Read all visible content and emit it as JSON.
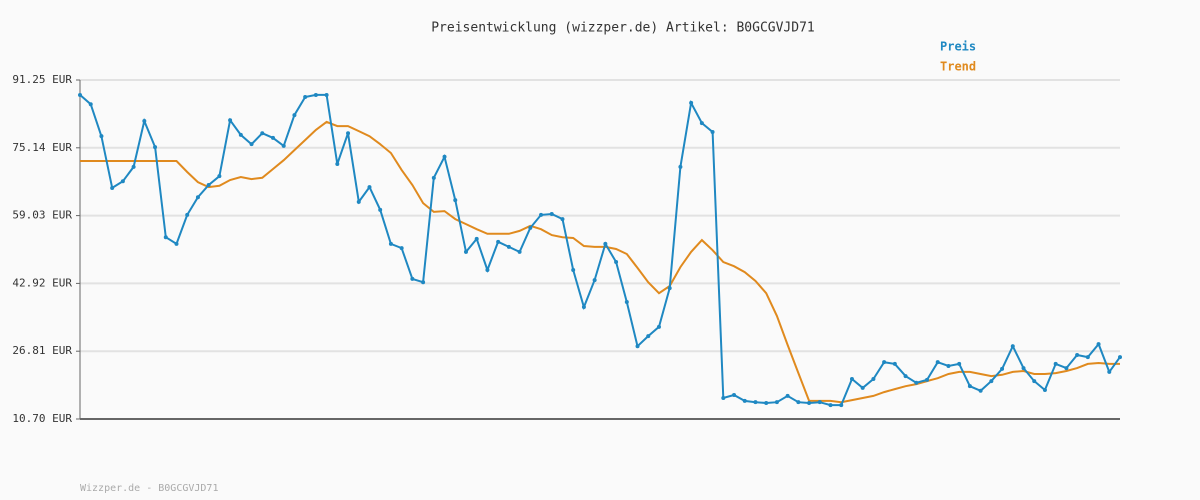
{
  "chart_data": {
    "type": "line",
    "title": "Preisentwicklung (wizzper.de) Artikel: B0GCGVJD71",
    "footer": "Wizzper.de - B0GCGVJD71",
    "categories": [
      null,
      null,
      null,
      null,
      null,
      null,
      null,
      null,
      null,
      null,
      null,
      null,
      null,
      null,
      null,
      null,
      null,
      null,
      null,
      null,
      null,
      null,
      null,
      null,
      null,
      null,
      null,
      null,
      null,
      null,
      null,
      null,
      null,
      null,
      null,
      null,
      null,
      null,
      null,
      null,
      null,
      null,
      null,
      null,
      null,
      null,
      null,
      null,
      null,
      null,
      null,
      null,
      null,
      null,
      null,
      null,
      null,
      null,
      null,
      null,
      null,
      null,
      null,
      null,
      null,
      null,
      null,
      null,
      null,
      null,
      null,
      null,
      null,
      null,
      null,
      null,
      null,
      null,
      null,
      null,
      null,
      null,
      null,
      null,
      null,
      null,
      null,
      null,
      null,
      null,
      null,
      null,
      null,
      null,
      null,
      null,
      null,
      null
    ],
    "series": [
      {
        "name": "Preis",
        "color": "#1f88c2",
        "markers": true,
        "values": [
          87.7,
          85.5,
          77.9,
          65.6,
          67.2,
          70.6,
          81.5,
          75.3,
          53.9,
          52.3,
          59.2,
          63.4,
          66.3,
          68.4,
          81.7,
          78.2,
          76.0,
          78.6,
          77.5,
          75.6,
          82.9,
          87.2,
          87.7,
          87.7,
          71.3,
          78.6,
          62.3,
          65.8,
          60.4,
          52.3,
          51.3,
          44.0,
          43.2,
          68.0,
          73.0,
          62.7,
          50.4,
          53.5,
          46.1,
          52.8,
          51.6,
          50.4,
          56.1,
          59.2,
          59.4,
          58.2,
          46.1,
          37.3,
          43.7,
          52.3,
          48.0,
          38.5,
          28.0,
          30.4,
          32.6,
          41.8,
          70.6,
          85.8,
          81.0,
          78.9,
          15.7,
          16.4,
          15.0,
          14.7,
          14.5,
          14.7,
          16.2,
          14.7,
          14.5,
          14.7,
          14.0,
          14.0,
          20.2,
          18.1,
          20.2,
          24.2,
          23.8,
          20.9,
          19.3,
          20.0,
          24.2,
          23.3,
          23.8,
          18.5,
          17.4,
          19.7,
          22.6,
          28.0,
          22.8,
          19.7,
          17.6,
          23.8,
          22.8,
          25.9,
          25.4,
          28.5,
          21.9,
          25.4
        ]
      },
      {
        "name": "Trend",
        "color": "#e08a1e",
        "markers": false,
        "values": [
          72.0,
          72.0,
          72.0,
          72.0,
          72.0,
          72.0,
          72.0,
          72.0,
          72.0,
          72.0,
          69.4,
          67.0,
          65.8,
          66.1,
          67.5,
          68.2,
          67.7,
          68.0,
          70.1,
          72.2,
          74.6,
          77.0,
          79.4,
          81.3,
          80.3,
          80.3,
          79.1,
          77.9,
          76.0,
          73.9,
          69.9,
          66.3,
          62.0,
          59.9,
          60.1,
          58.2,
          57.0,
          55.8,
          54.7,
          54.7,
          54.7,
          55.4,
          56.6,
          55.8,
          54.4,
          53.9,
          53.7,
          51.8,
          51.6,
          51.6,
          51.1,
          49.9,
          46.6,
          43.2,
          40.6,
          42.3,
          46.8,
          50.4,
          53.2,
          50.8,
          48.0,
          47.0,
          45.6,
          43.5,
          40.6,
          35.2,
          28.3,
          21.6,
          15.0,
          15.0,
          15.0,
          14.7,
          15.2,
          15.7,
          16.2,
          17.1,
          17.8,
          18.5,
          19.0,
          19.7,
          20.4,
          21.4,
          21.9,
          21.9,
          21.4,
          20.9,
          21.2,
          21.9,
          22.1,
          21.4,
          21.4,
          21.6,
          22.1,
          22.8,
          23.8,
          24.0,
          23.8,
          23.8
        ]
      }
    ],
    "ylim": [
      10.7,
      91.25
    ],
    "yticks": [
      {
        "value": 10.7,
        "label": "10.70 EUR"
      },
      {
        "value": 26.81,
        "label": "26.81 EUR"
      },
      {
        "value": 42.92,
        "label": "42.92 EUR"
      },
      {
        "value": 59.03,
        "label": "59.03 EUR"
      },
      {
        "value": 75.14,
        "label": "75.14 EUR"
      },
      {
        "value": 91.25,
        "label": "91.25 EUR"
      }
    ],
    "grid": true,
    "legend": "top-right"
  }
}
